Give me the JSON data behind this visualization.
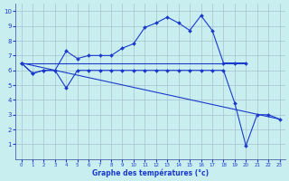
{
  "xlabel": "Graphe des températures (°c)",
  "background_color": "#c8eef0",
  "grid_color": "#a0b8c8",
  "line_color": "#1a3acc",
  "axis_label_color": "#1a3acc",
  "xlim": [
    -0.5,
    23.5
  ],
  "ylim": [
    0,
    10.5
  ],
  "xticks": [
    0,
    1,
    2,
    3,
    4,
    5,
    6,
    7,
    8,
    9,
    10,
    11,
    12,
    13,
    14,
    15,
    16,
    17,
    18,
    19,
    20,
    21,
    22,
    23
  ],
  "yticks": [
    1,
    2,
    3,
    4,
    5,
    6,
    7,
    8,
    9,
    10
  ],
  "series": [
    {
      "name": "upper_curve_with_markers",
      "x": [
        0,
        1,
        2,
        3,
        4,
        5,
        6,
        7,
        8,
        9,
        10,
        11,
        12,
        13,
        14,
        15,
        16,
        17,
        18,
        19,
        20
      ],
      "y": [
        6.5,
        5.8,
        6.0,
        6.0,
        7.3,
        6.8,
        7.0,
        7.0,
        7.0,
        7.5,
        7.8,
        8.9,
        9.2,
        9.6,
        9.2,
        8.7,
        9.7,
        8.7,
        6.5,
        6.5,
        6.5
      ],
      "marker": true
    },
    {
      "name": "flat_upper_line",
      "x": [
        0,
        20
      ],
      "y": [
        6.5,
        6.5
      ],
      "marker": false
    },
    {
      "name": "declining_lower_line",
      "x": [
        0,
        23
      ],
      "y": [
        6.5,
        2.7
      ],
      "marker": false
    },
    {
      "name": "lower_curve_with_markers",
      "x": [
        0,
        1,
        2,
        3,
        4,
        5,
        6,
        7,
        8,
        9,
        10,
        11,
        12,
        13,
        14,
        15,
        16,
        17,
        18,
        19,
        20,
        21,
        22,
        23
      ],
      "y": [
        6.5,
        5.8,
        6.0,
        6.0,
        4.8,
        6.0,
        6.0,
        6.0,
        6.0,
        6.0,
        6.0,
        6.0,
        6.0,
        6.0,
        6.0,
        6.0,
        6.0,
        6.0,
        6.0,
        3.8,
        0.9,
        3.0,
        3.0,
        2.7
      ],
      "marker": true
    }
  ]
}
